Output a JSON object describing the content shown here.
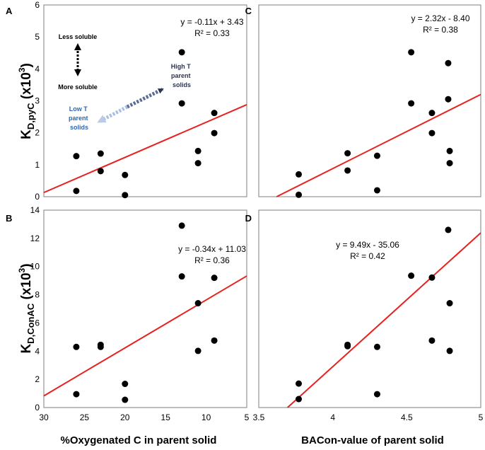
{
  "annotations": {
    "less_soluble": "Less soluble",
    "more_soluble": "More soluble",
    "high_t_line1": "High T",
    "high_t_line2": "parent",
    "high_t_line3": "solids",
    "low_t_line1": "Low T",
    "low_t_line2": "parent",
    "low_t_line3": "solids",
    "high_t_color": "#2b3552",
    "low_t_color": "#2e66ad"
  },
  "axis_titles": {
    "x_left": "%Oxygenated C in parent solid",
    "x_right": "BACon-value of parent solid",
    "y_top_main": "K",
    "y_top_sub": "D,pyC",
    "y_top_rest": " (x10",
    "y_top_sup": "3",
    "y_top_close": ")",
    "y_bottom_main": "K",
    "y_bottom_sub": "D,ConAC",
    "y_bottom_rest": " (x10",
    "y_bottom_sup": "3",
    "y_bottom_close": ")"
  },
  "style": {
    "fit_line_color": "#e8201f",
    "point_color": "#000000"
  },
  "chart_data": [
    {
      "panel": "A",
      "type": "scatter",
      "xlabel": "%Oxygenated C in parent solid",
      "ylabel": "KD,pyC (x103)",
      "x_reversed": true,
      "xlim": [
        30,
        5
      ],
      "ylim": [
        0,
        6
      ],
      "xticks": [
        30,
        25,
        20,
        15,
        10,
        5
      ],
      "yticks": [
        0,
        1,
        2,
        3,
        4,
        5,
        6
      ],
      "x": [
        26,
        26,
        23,
        23,
        20,
        20,
        13,
        13,
        11,
        11,
        9,
        9
      ],
      "y": [
        1.27,
        0.18,
        1.35,
        0.8,
        0.68,
        0.05,
        4.52,
        2.92,
        1.43,
        1.05,
        2.62,
        1.99
      ],
      "fit": {
        "slope": -0.11,
        "intercept": 3.43
      },
      "equation": "y = -0.11x + 3.43",
      "r2": "R² = 0.33"
    },
    {
      "panel": "B",
      "type": "scatter",
      "xlabel": "%Oxygenated C in parent solid",
      "ylabel": "KD,ConAC (x103)",
      "x_reversed": true,
      "xlim": [
        30,
        5
      ],
      "ylim": [
        0,
        14
      ],
      "xticks": [
        30,
        25,
        20,
        15,
        10,
        5
      ],
      "yticks": [
        0,
        2,
        4,
        6,
        8,
        10,
        12,
        14
      ],
      "x": [
        26,
        26,
        23,
        23,
        20,
        20,
        13,
        13,
        11,
        11,
        9,
        9
      ],
      "y": [
        4.3,
        0.95,
        4.45,
        4.3,
        1.68,
        0.55,
        12.9,
        9.3,
        7.4,
        4.02,
        9.2,
        4.75
      ],
      "fit": {
        "slope": -0.34,
        "intercept": 11.03
      },
      "equation": "y = -0.34x + 11.03",
      "r2": "R² = 0.36"
    },
    {
      "panel": "C",
      "type": "scatter",
      "xlabel": "BACon-value of parent solid",
      "ylabel": "KD,pyC (x103)",
      "x_reversed": false,
      "xlim": [
        3.5,
        5
      ],
      "ylim": [
        0,
        6
      ],
      "xticks": [
        3.5,
        4,
        4.5,
        5
      ],
      "yticks": [
        0,
        1,
        2,
        3,
        4,
        5,
        6
      ],
      "x": [
        3.77,
        3.77,
        4.1,
        4.1,
        4.3,
        4.3,
        4.53,
        4.53,
        4.67,
        4.67,
        4.78,
        4.78,
        4.79,
        4.79
      ],
      "y": [
        0.7,
        0.06,
        1.36,
        0.82,
        1.28,
        0.2,
        4.52,
        2.92,
        2.62,
        1.99,
        4.18,
        3.05,
        1.43,
        1.05
      ],
      "fit": {
        "slope": 2.32,
        "intercept": -8.4
      },
      "equation": "y = 2.32x - 8.40",
      "r2": "R² = 0.38"
    },
    {
      "panel": "D",
      "type": "scatter",
      "xlabel": "BACon-value of parent solid",
      "ylabel": "KD,ConAC (x103)",
      "x_reversed": false,
      "xlim": [
        3.5,
        5
      ],
      "ylim": [
        0,
        14
      ],
      "xticks": [
        3.5,
        4,
        4.5,
        5
      ],
      "yticks": [
        0,
        2,
        4,
        6,
        8,
        10,
        12,
        14
      ],
      "x": [
        3.77,
        3.77,
        4.1,
        4.1,
        4.3,
        4.3,
        4.53,
        4.67,
        4.67,
        4.78,
        4.79,
        4.79
      ],
      "y": [
        1.7,
        0.6,
        4.45,
        4.35,
        4.3,
        0.95,
        9.35,
        9.22,
        4.75,
        12.6,
        7.4,
        4.02
      ],
      "fit": {
        "slope": 9.49,
        "intercept": -35.06
      },
      "equation": "y = 9.49x - 35.06",
      "r2": "R² = 0.42"
    }
  ]
}
